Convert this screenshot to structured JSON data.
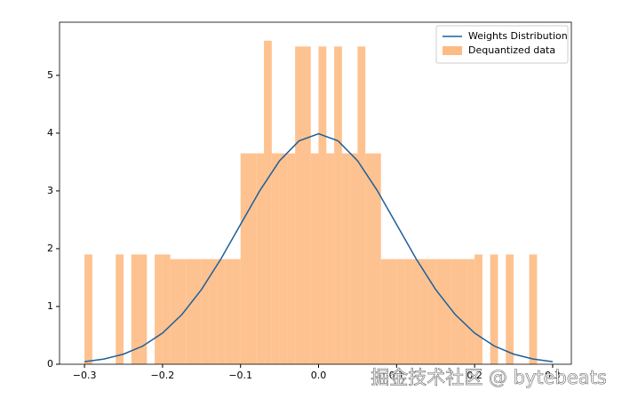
{
  "chart_data": {
    "type": "histogram",
    "series": [
      {
        "name": "Dequantized data",
        "type": "histogram",
        "color": "#fdbb84",
        "bins": [
          -0.3,
          -0.29,
          -0.28,
          -0.27,
          -0.26,
          -0.25,
          -0.24,
          -0.23,
          -0.22,
          -0.21,
          -0.2,
          -0.19,
          -0.18,
          -0.17,
          -0.16,
          -0.15,
          -0.14,
          -0.13,
          -0.12,
          -0.11,
          -0.1,
          -0.09,
          -0.08,
          -0.07,
          -0.06,
          -0.05,
          -0.04,
          -0.03,
          -0.02,
          -0.01,
          0.0,
          0.01,
          0.02,
          0.03,
          0.04,
          0.05,
          0.06,
          0.07,
          0.08,
          0.09,
          0.1,
          0.11,
          0.12,
          0.13,
          0.14,
          0.15,
          0.16,
          0.17,
          0.18,
          0.19,
          0.2,
          0.21,
          0.22,
          0.23,
          0.24,
          0.25,
          0.26,
          0.27,
          0.28,
          0.29,
          0.3
        ],
        "values": [
          1.9,
          0,
          0,
          0,
          1.9,
          0,
          1.9,
          1.9,
          0,
          1.9,
          1.9,
          1.82,
          1.82,
          1.82,
          1.82,
          1.82,
          1.82,
          1.82,
          1.82,
          1.82,
          3.65,
          3.65,
          3.65,
          5.6,
          3.65,
          3.65,
          3.65,
          5.5,
          5.5,
          3.65,
          5.5,
          3.65,
          5.5,
          3.65,
          3.65,
          5.5,
          3.65,
          3.65,
          1.82,
          1.82,
          1.82,
          1.82,
          1.82,
          1.82,
          1.82,
          1.82,
          1.82,
          1.82,
          1.82,
          1.82,
          1.9,
          0,
          1.9,
          0,
          1.9,
          0,
          0,
          1.9,
          0,
          0
        ]
      },
      {
        "name": "Weights Distribution",
        "type": "line",
        "color": "#1f5f99",
        "x": [
          -0.3,
          -0.275,
          -0.25,
          -0.225,
          -0.2,
          -0.175,
          -0.15,
          -0.125,
          -0.1,
          -0.075,
          -0.05,
          -0.025,
          0,
          0.025,
          0.05,
          0.075,
          0.1,
          0.125,
          0.15,
          0.175,
          0.2,
          0.225,
          0.25,
          0.275,
          0.3
        ],
        "values": [
          0.044,
          0.091,
          0.175,
          0.317,
          0.54,
          0.863,
          1.295,
          1.826,
          2.42,
          3.011,
          3.521,
          3.866,
          3.989,
          3.866,
          3.521,
          3.011,
          2.42,
          1.826,
          1.295,
          0.863,
          0.54,
          0.317,
          0.175,
          0.091,
          0.044
        ]
      }
    ],
    "xlim": [
      -0.332,
      0.324
    ],
    "ylim": [
      0,
      5.92
    ],
    "xticks": [
      {
        "value": -0.3,
        "label": "−0.3"
      },
      {
        "value": -0.2,
        "label": "−0.2"
      },
      {
        "value": -0.1,
        "label": "−0.1"
      },
      {
        "value": 0,
        "label": "0.0"
      },
      0.1,
      0.2,
      0.3
    ],
    "yticks": [
      0,
      1,
      2,
      3,
      4,
      5
    ],
    "legend": "upper right",
    "watermark": "掘金技术社区 @ bytebeats"
  }
}
